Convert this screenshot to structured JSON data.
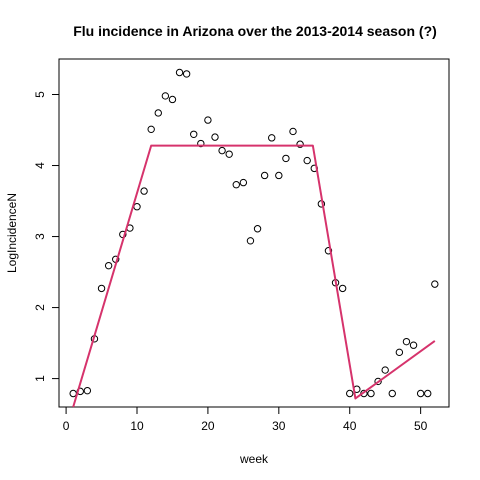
{
  "chart_data": {
    "type": "scatter",
    "title": "Flu incidence in Arizona over the 2013-2014 season (?)",
    "xlabel": "week",
    "ylabel": "LogIncidenceN",
    "xlim": [
      -1,
      54
    ],
    "ylim": [
      0.6,
      5.5
    ],
    "x_ticks": [
      0,
      10,
      20,
      30,
      40,
      50
    ],
    "y_ticks": [
      1,
      2,
      3,
      4,
      5
    ],
    "grid": false,
    "legend": "none",
    "point_color": "#000000",
    "fit_color": "#D6336C",
    "points": {
      "x": [
        1,
        2,
        3,
        4,
        5,
        6,
        7,
        8,
        9,
        10,
        11,
        12,
        13,
        14,
        15,
        16,
        17,
        18,
        19,
        20,
        21,
        22,
        23,
        24,
        25,
        26,
        27,
        28,
        29,
        30,
        31,
        32,
        33,
        34,
        35,
        36,
        37,
        38,
        39,
        40,
        41,
        42,
        43,
        44,
        45,
        46,
        47,
        48,
        49,
        50,
        51,
        52
      ],
      "y": [
        0.79,
        0.82,
        0.83,
        1.56,
        2.27,
        2.59,
        2.68,
        3.03,
        3.12,
        3.42,
        3.64,
        4.51,
        4.74,
        4.98,
        4.93,
        5.31,
        5.29,
        4.44,
        4.31,
        4.64,
        4.4,
        4.21,
        4.16,
        3.73,
        3.76,
        2.94,
        3.11,
        3.86,
        4.39,
        3.86,
        4.1,
        4.48,
        4.3,
        4.07,
        3.96,
        3.46,
        2.8,
        2.35,
        2.27,
        0.79,
        0.85,
        0.79,
        0.79,
        0.96,
        1.12,
        0.79,
        1.37,
        1.52,
        1.47,
        0.79,
        0.79,
        2.33
      ]
    },
    "fit_line": {
      "x": [
        1,
        12,
        34.8,
        40.8,
        52
      ],
      "y": [
        0.6,
        4.28,
        4.28,
        0.72,
        1.53
      ]
    }
  }
}
